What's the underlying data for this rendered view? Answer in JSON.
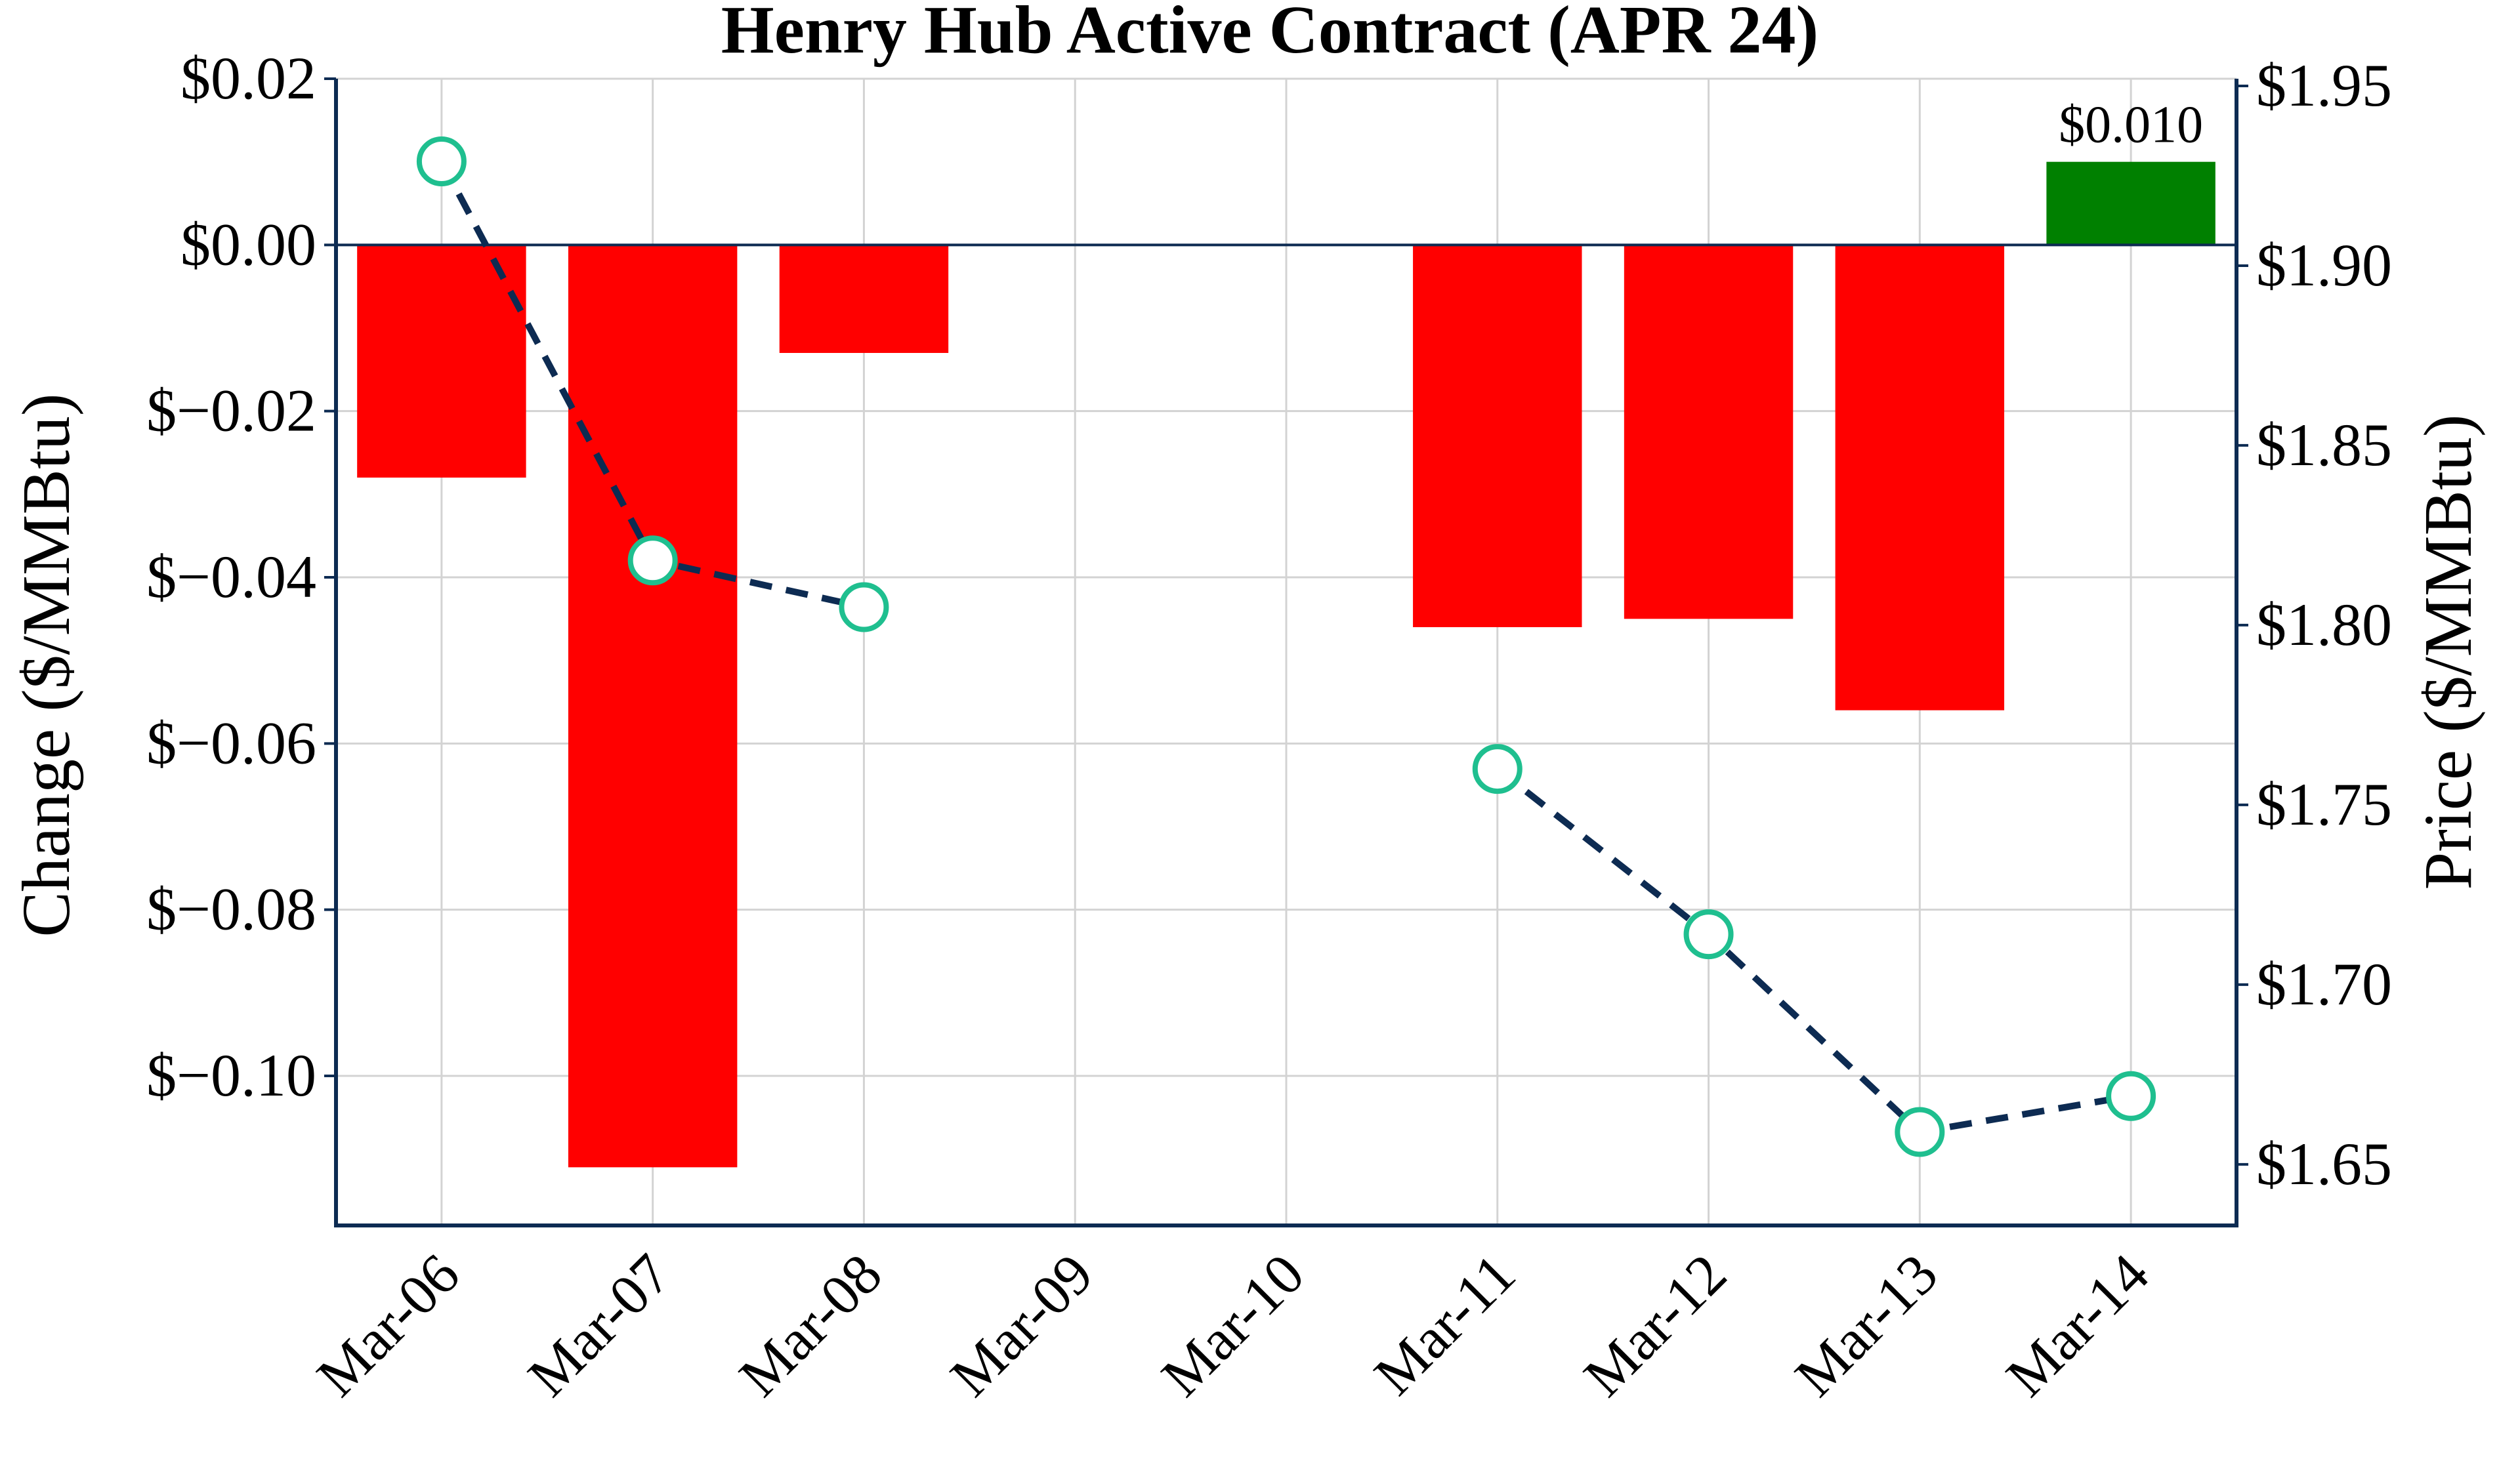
{
  "chart_data": {
    "type": "bar",
    "title": "Henry Hub Active Contract (APR 24)",
    "categories": [
      "Mar-06",
      "Mar-07",
      "Mar-08",
      "Mar-09",
      "Mar-10",
      "Mar-11",
      "Mar-12",
      "Mar-13",
      "Mar-14"
    ],
    "bar_series": {
      "name": "Change",
      "values": [
        -0.028,
        -0.111,
        -0.013,
        null,
        null,
        -0.046,
        -0.045,
        -0.056,
        0.01
      ],
      "colors": {
        "positive": "#008000",
        "negative": "#ff0000"
      }
    },
    "line_series": {
      "name": "Price",
      "values": [
        1.929,
        1.818,
        1.805,
        null,
        null,
        1.76,
        1.714,
        1.659,
        1.669
      ],
      "line_color": "#0d2b52",
      "marker_color": "#1fbf8f",
      "style": "dashed"
    },
    "annotations": [
      {
        "category": "Mar-14",
        "text": "$0.010"
      }
    ],
    "ylabel_left": "Change ($/MMBtu)",
    "ylabel_right": "Price ($/MMBtu)",
    "ylim_left": [
      -0.118,
      0.02
    ],
    "ylim_right": [
      1.633,
      1.952
    ],
    "yticks_left": [
      0.02,
      0.0,
      -0.02,
      -0.04,
      -0.06,
      -0.08,
      -0.1
    ],
    "yticks_left_labels": [
      "$0.02",
      "$0.00",
      "$−0.02",
      "$−0.04",
      "$−0.06",
      "$−0.08",
      "$−0.10"
    ],
    "yticks_right": [
      1.95,
      1.9,
      1.85,
      1.8,
      1.75,
      1.7,
      1.65
    ],
    "yticks_right_labels": [
      "$1.95",
      "$1.90",
      "$1.85",
      "$1.80",
      "$1.75",
      "$1.70",
      "$1.65"
    ],
    "grid": true,
    "axis_color": "#0d2b52"
  }
}
